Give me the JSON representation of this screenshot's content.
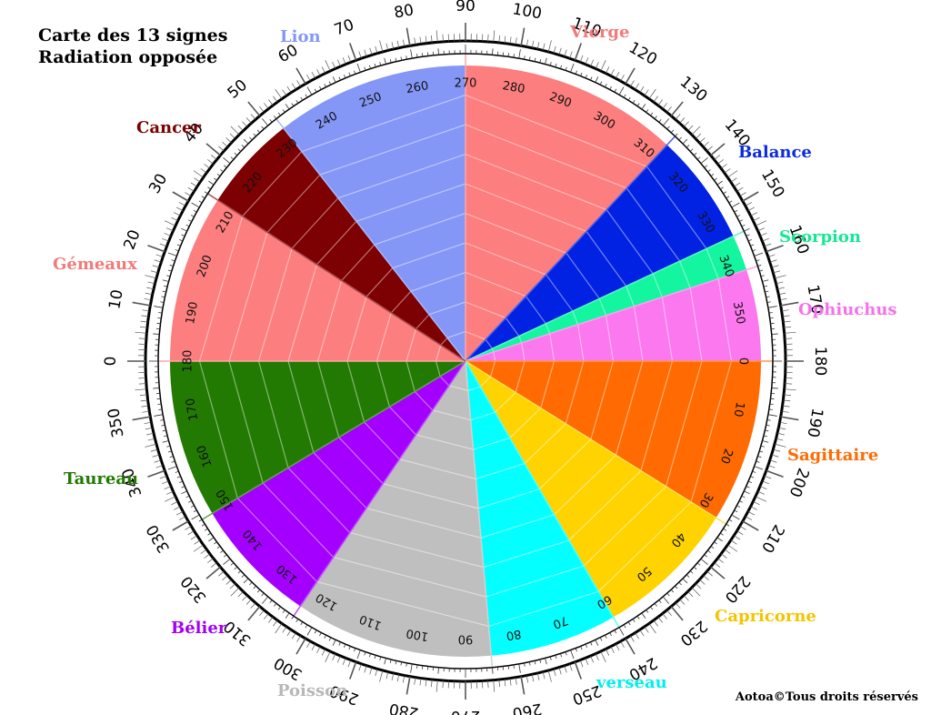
{
  "title": {
    "line1": "Carte des 13 signes",
    "line2": "Radiation opposée"
  },
  "copyright": "Aotoa©Tous droits réservés",
  "signs": [
    {
      "name": "Lion",
      "color": "#8497f7",
      "label_color": "#8497f7",
      "start": 232,
      "end": 270
    },
    {
      "name": "Vierge",
      "color": "#fd7e7e",
      "label_color": "#f27a7a",
      "start": 270,
      "end": 313
    },
    {
      "name": "Balance",
      "color": "#0222e3",
      "label_color": "#0a2be0",
      "start": 313,
      "end": 335
    },
    {
      "name": "Scorpion",
      "color": "#14f5a0",
      "label_color": "#14e894",
      "start": 335,
      "end": 342
    },
    {
      "name": "Ophiuchus",
      "color": "#fb78ee",
      "label_color": "#f472e9",
      "start": 342,
      "end": 360
    },
    {
      "name": "Sagittaire",
      "color": "#ff6b02",
      "label_color": "#ff6b02",
      "start": 0,
      "end": 32
    },
    {
      "name": "Capricorne",
      "color": "#ffd300",
      "label_color": "#f5c400",
      "start": 32,
      "end": 60
    },
    {
      "name": "verseau",
      "color": "#03ffff",
      "label_color": "#03efef",
      "start": 60,
      "end": 85
    },
    {
      "name": "Poisson",
      "color": "#bfbfbf",
      "label_color": "#b8b8b8",
      "start": 85,
      "end": 124
    },
    {
      "name": "Bélier",
      "color": "#a300ff",
      "label_color": "#a300f5",
      "start": 124,
      "end": 149
    },
    {
      "name": "Taureau",
      "color": "#237a02",
      "label_color": "#237a02",
      "start": 149,
      "end": 180
    },
    {
      "name": "Gémeaux",
      "color": "#fd7e7e",
      "label_color": "#f27a7a",
      "start": 180,
      "end": 213
    },
    {
      "name": "Cancer",
      "color": "#7d0002",
      "label_color": "#7d0002",
      "start": 213,
      "end": 232
    }
  ],
  "inner_scale_labels": [
    "0",
    "10",
    "20",
    "30",
    "40",
    "50",
    "60",
    "70",
    "80",
    "90",
    "100",
    "110",
    "120",
    "130",
    "140",
    "150",
    "160",
    "170",
    "180",
    "190",
    "200",
    "210",
    "220",
    "230",
    "240",
    "250",
    "260",
    "270",
    "280",
    "290",
    "300",
    "310",
    "320",
    "330",
    "340",
    "350"
  ],
  "outer_scale_labels": [
    "0",
    "10",
    "20",
    "30",
    "40",
    "50",
    "60",
    "70",
    "80",
    "90",
    "100",
    "110",
    "120",
    "130",
    "140",
    "150",
    "160",
    "170",
    "180",
    "190",
    "200",
    "210",
    "220",
    "230",
    "240",
    "250",
    "260",
    "270",
    "280",
    "290",
    "300",
    "310",
    "320",
    "330",
    "340",
    "350"
  ]
}
